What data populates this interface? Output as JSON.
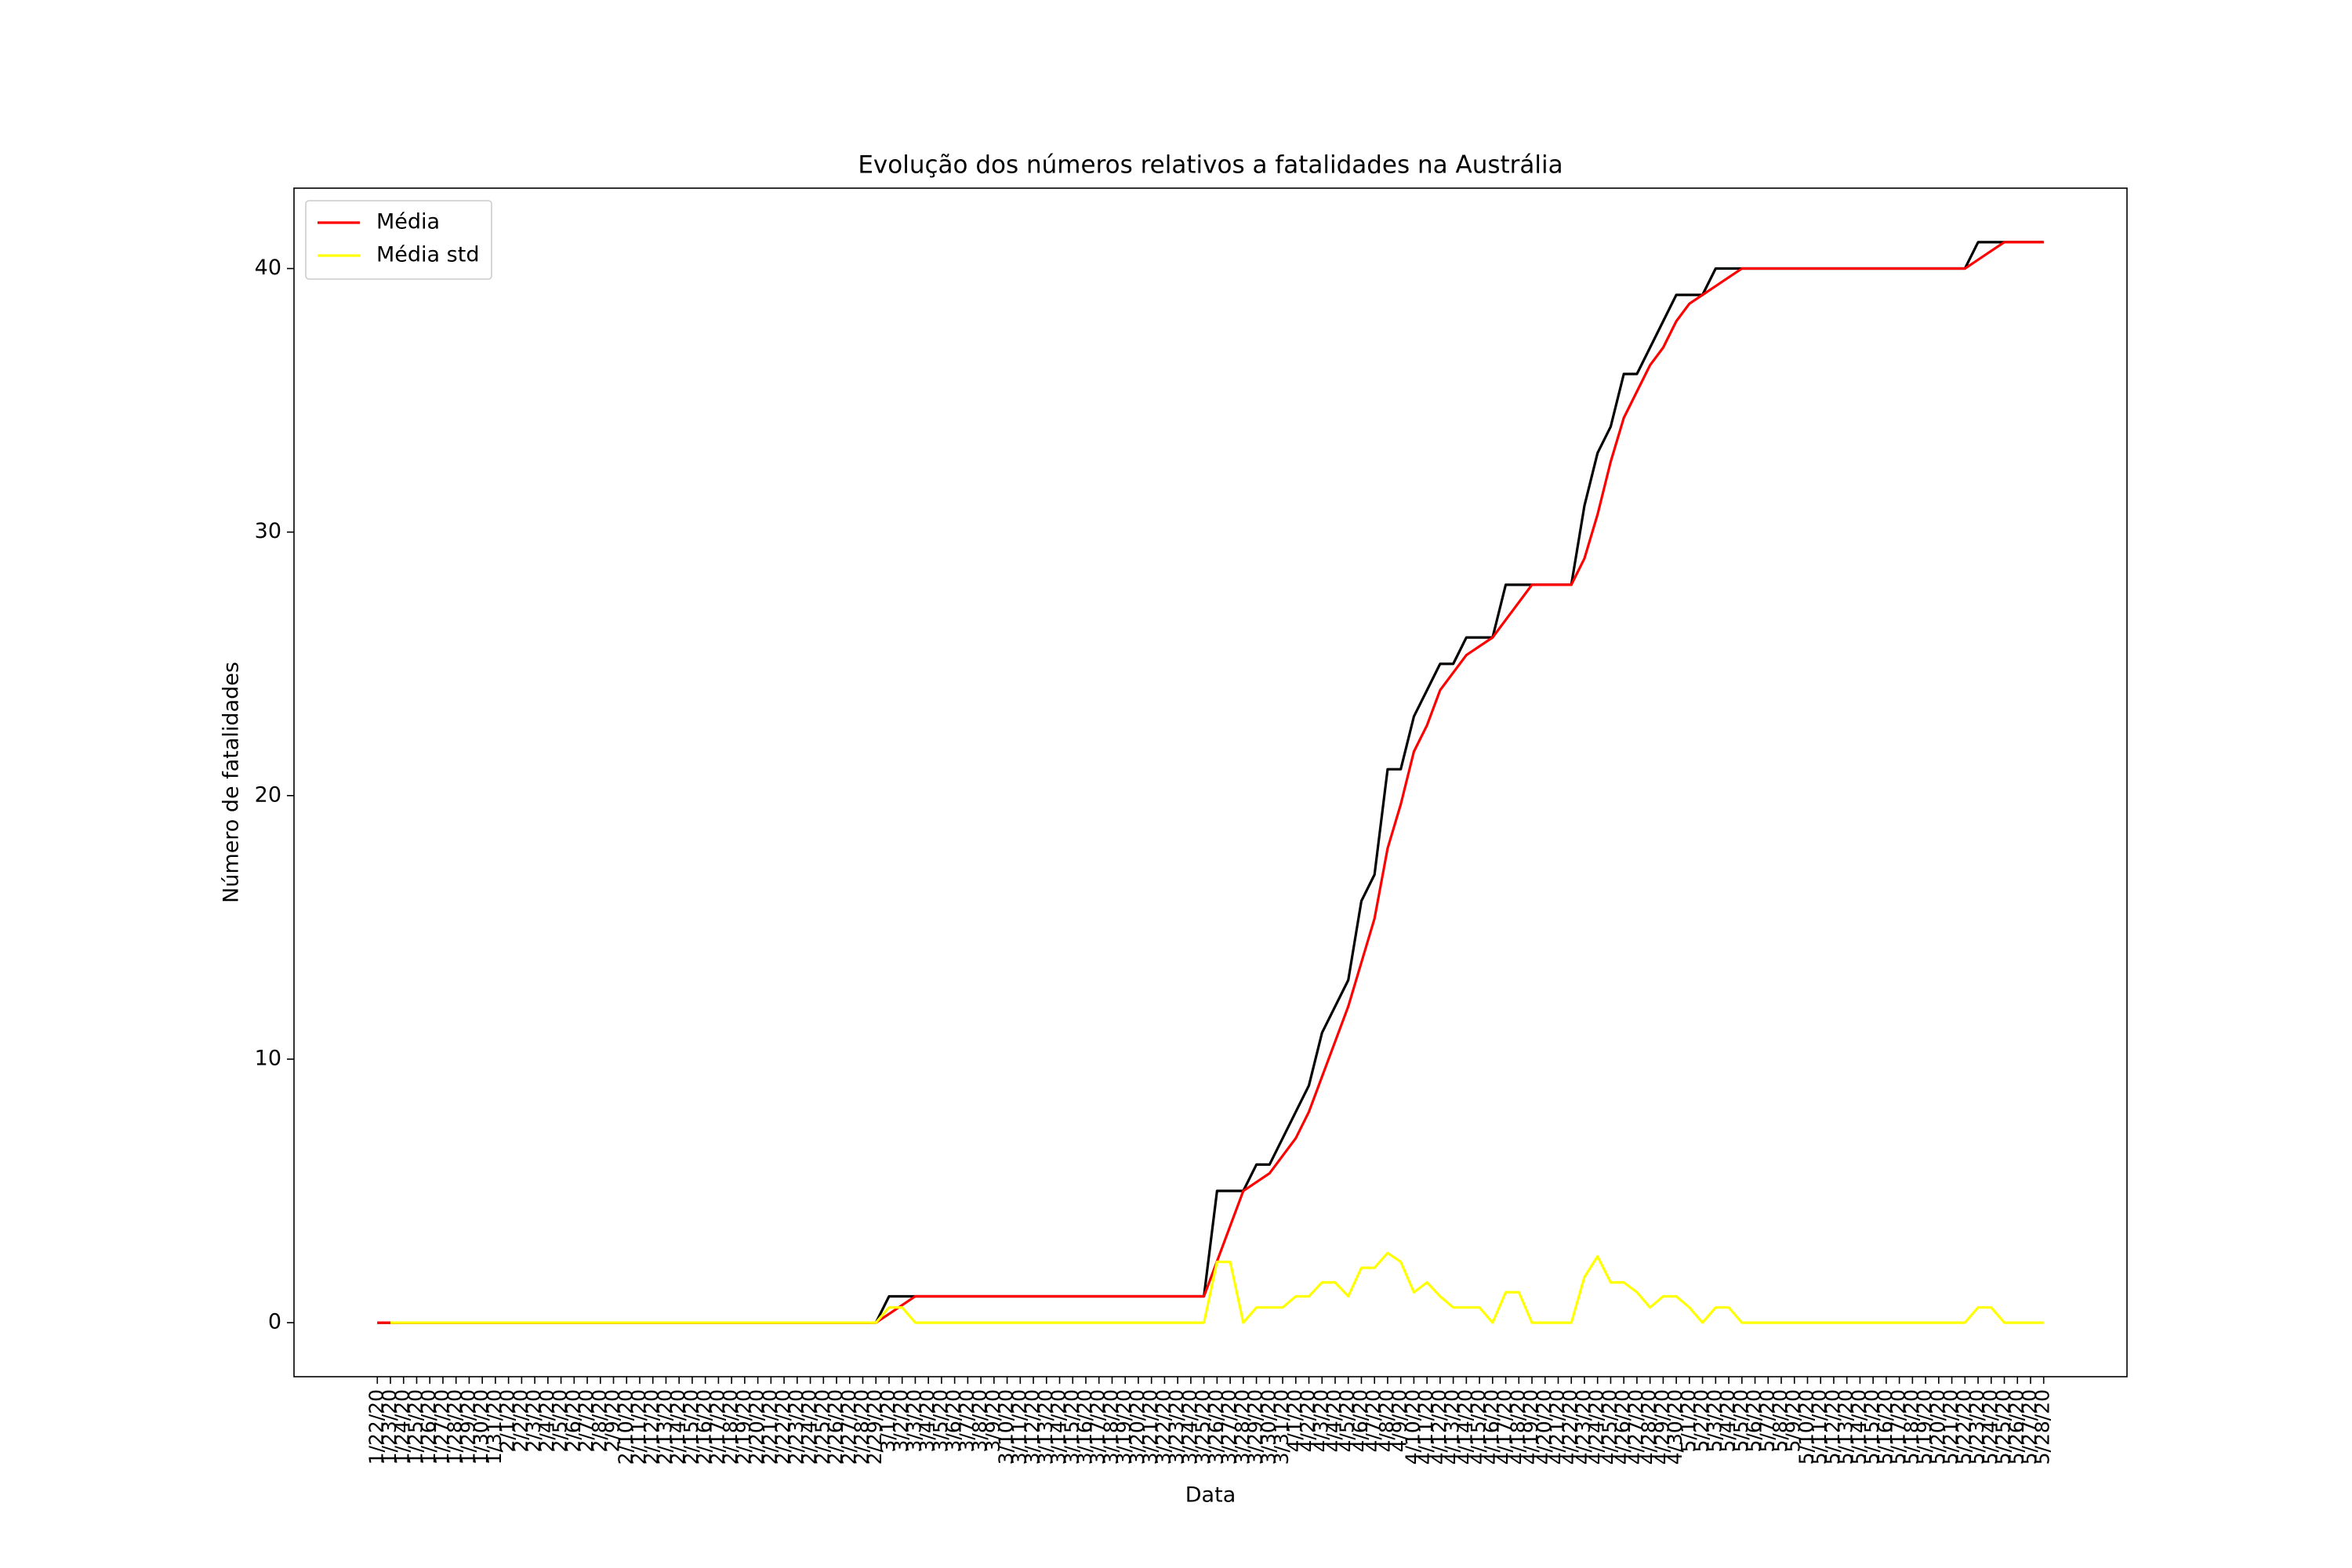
{
  "chart_data": {
    "type": "line",
    "title": "Evolução dos números relativos a fatalidades na Austrália",
    "xlabel": "Data",
    "ylabel": "Número de fatalidades",
    "categories": [
      "1/22/20",
      "1/23/20",
      "1/24/20",
      "1/25/20",
      "1/26/20",
      "1/27/20",
      "1/28/20",
      "1/29/20",
      "1/30/20",
      "1/31/20",
      "2/1/20",
      "2/2/20",
      "2/3/20",
      "2/4/20",
      "2/5/20",
      "2/6/20",
      "2/7/20",
      "2/8/20",
      "2/9/20",
      "2/10/20",
      "2/11/20",
      "2/12/20",
      "2/13/20",
      "2/14/20",
      "2/15/20",
      "2/16/20",
      "2/17/20",
      "2/18/20",
      "2/19/20",
      "2/20/20",
      "2/21/20",
      "2/22/20",
      "2/23/20",
      "2/24/20",
      "2/25/20",
      "2/26/20",
      "2/27/20",
      "2/28/20",
      "2/29/20",
      "3/1/20",
      "3/2/20",
      "3/3/20",
      "3/4/20",
      "3/5/20",
      "3/6/20",
      "3/7/20",
      "3/8/20",
      "3/9/20",
      "3/10/20",
      "3/11/20",
      "3/12/20",
      "3/13/20",
      "3/14/20",
      "3/15/20",
      "3/16/20",
      "3/17/20",
      "3/18/20",
      "3/19/20",
      "3/20/20",
      "3/21/20",
      "3/22/20",
      "3/23/20",
      "3/24/20",
      "3/25/20",
      "3/26/20",
      "3/27/20",
      "3/28/20",
      "3/29/20",
      "3/30/20",
      "3/31/20",
      "4/1/20",
      "4/2/20",
      "4/3/20",
      "4/4/20",
      "4/5/20",
      "4/6/20",
      "4/7/20",
      "4/8/20",
      "4/9/20",
      "4/10/20",
      "4/11/20",
      "4/12/20",
      "4/13/20",
      "4/14/20",
      "4/15/20",
      "4/16/20",
      "4/17/20",
      "4/18/20",
      "4/19/20",
      "4/20/20",
      "4/21/20",
      "4/22/20",
      "4/23/20",
      "4/24/20",
      "4/25/20",
      "4/26/20",
      "4/27/20",
      "4/28/20",
      "4/29/20",
      "4/30/20",
      "5/1/20",
      "5/2/20",
      "5/3/20",
      "5/4/20",
      "5/5/20",
      "5/6/20",
      "5/7/20",
      "5/8/20",
      "5/9/20",
      "5/10/20",
      "5/11/20",
      "5/12/20",
      "5/13/20",
      "5/14/20",
      "5/15/20",
      "5/16/20",
      "5/17/20",
      "5/18/20",
      "5/19/20",
      "5/20/20",
      "5/21/20",
      "5/22/20",
      "5/23/20",
      "5/24/20",
      "5/25/20",
      "5/26/20",
      "5/27/20",
      "5/28/20"
    ],
    "series": [
      {
        "color": "#000000",
        "values": [
          0,
          0,
          0,
          0,
          0,
          0,
          0,
          0,
          0,
          0,
          0,
          0,
          0,
          0,
          0,
          0,
          0,
          0,
          0,
          0,
          0,
          0,
          0,
          0,
          0,
          0,
          0,
          0,
          0,
          0,
          0,
          0,
          0,
          0,
          0,
          0,
          0,
          0,
          0,
          1,
          1,
          1,
          1,
          1,
          1,
          1,
          1,
          1,
          1,
          1,
          1,
          1,
          1,
          1,
          1,
          1,
          1,
          1,
          1,
          1,
          1,
          1,
          1,
          1,
          5,
          5,
          5,
          6,
          6,
          7,
          8,
          9,
          11,
          12,
          13,
          16,
          17,
          21,
          21,
          23,
          24,
          25,
          25,
          26,
          26,
          26,
          28,
          28,
          28,
          28,
          28,
          28,
          31,
          33,
          34,
          36,
          36,
          37,
          38,
          39,
          39,
          39,
          40,
          40,
          40,
          40,
          40,
          40,
          40,
          40,
          40,
          40,
          40,
          40,
          40,
          40,
          40,
          40,
          40,
          40,
          40,
          40,
          41,
          41,
          41,
          41,
          41,
          41
        ]
      },
      {
        "name": "Média",
        "color": "#ff0000",
        "values": [
          0,
          0,
          0,
          0,
          0,
          0,
          0,
          0,
          0,
          0,
          0,
          0,
          0,
          0,
          0,
          0,
          0,
          0,
          0,
          0,
          0,
          0,
          0,
          0,
          0,
          0,
          0,
          0,
          0,
          0,
          0,
          0,
          0,
          0,
          0,
          0,
          0,
          0,
          0,
          0.333,
          0.667,
          1,
          1,
          1,
          1,
          1,
          1,
          1,
          1,
          1,
          1,
          1,
          1,
          1,
          1,
          1,
          1,
          1,
          1,
          1,
          1,
          1,
          1,
          1,
          2.333,
          3.667,
          5,
          5.333,
          5.667,
          6.333,
          7,
          8,
          9.333,
          10.667,
          12,
          13.667,
          15.333,
          18,
          19.667,
          21.667,
          22.667,
          24,
          24.667,
          25.333,
          25.667,
          26,
          26.667,
          27.333,
          28,
          28,
          28,
          28,
          29,
          30.667,
          32.667,
          34.333,
          35.333,
          36.333,
          37,
          38,
          38.667,
          39,
          39.333,
          39.667,
          40,
          40,
          40,
          40,
          40,
          40,
          40,
          40,
          40,
          40,
          40,
          40,
          40,
          40,
          40,
          40,
          40,
          40,
          40.333,
          40.667,
          41,
          41,
          41,
          41
        ]
      },
      {
        "name": "Média std",
        "color": "#ffff00",
        "values": [
          null,
          0,
          0,
          0,
          0,
          0,
          0,
          0,
          0,
          0,
          0,
          0,
          0,
          0,
          0,
          0,
          0,
          0,
          0,
          0,
          0,
          0,
          0,
          0,
          0,
          0,
          0,
          0,
          0,
          0,
          0,
          0,
          0,
          0,
          0,
          0,
          0,
          0,
          0,
          0.577,
          0.577,
          0,
          0,
          0,
          0,
          0,
          0,
          0,
          0,
          0,
          0,
          0,
          0,
          0,
          0,
          0,
          0,
          0,
          0,
          0,
          0,
          0,
          0,
          0,
          2.309,
          2.309,
          0,
          0.577,
          0.577,
          0.577,
          1,
          1,
          1.528,
          1.528,
          1,
          2.082,
          2.082,
          2.646,
          2.309,
          1.155,
          1.528,
          1,
          0.577,
          0.577,
          0.577,
          0,
          1.155,
          1.155,
          0,
          0,
          0,
          0,
          1.732,
          2.517,
          1.528,
          1.528,
          1.155,
          0.577,
          1,
          1,
          0.577,
          0,
          0.577,
          0.577,
          0,
          0,
          0,
          0,
          0,
          0,
          0,
          0,
          0,
          0,
          0,
          0,
          0,
          0,
          0,
          0,
          0,
          0,
          0.577,
          0.577,
          0,
          0,
          0,
          0
        ]
      }
    ],
    "ylim": [
      -2.05,
      43.05
    ],
    "yticks": [
      0,
      10,
      20,
      30,
      40
    ],
    "legend": "upper left"
  }
}
